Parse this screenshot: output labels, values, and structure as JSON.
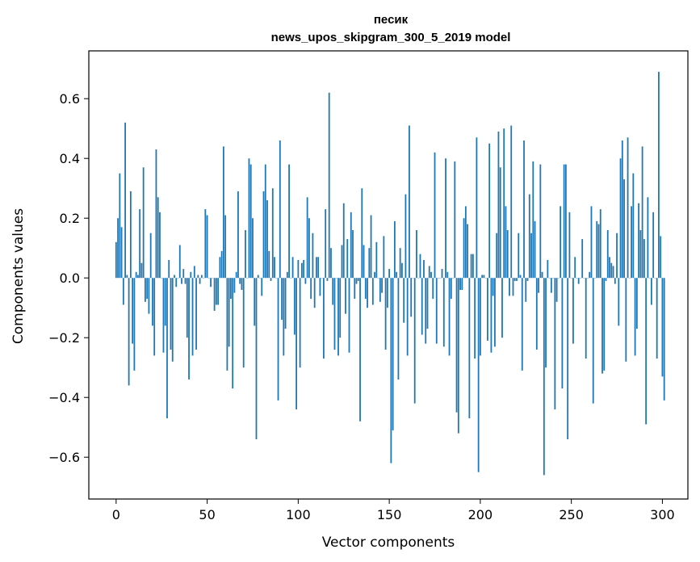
{
  "chart_data": {
    "type": "bar",
    "title": "песик",
    "subtitle": "news_upos_skipgram_300_5_2019 model",
    "xlabel": "Vector components",
    "ylabel": "Components values",
    "xlim": [
      -15,
      314
    ],
    "ylim": [
      -0.74,
      0.76
    ],
    "xticks": [
      0,
      50,
      100,
      150,
      200,
      250,
      300
    ],
    "yticks": [
      -0.6,
      -0.4,
      -0.2,
      0.0,
      0.2,
      0.4,
      0.6
    ],
    "ytick_labels": [
      "−0.6",
      "−0.4",
      "−0.2",
      "0.0",
      "0.2",
      "0.4",
      "0.6"
    ],
    "bar_color": "#1f77b4",
    "grid": false,
    "legend": "none",
    "x_start": 0,
    "values": [
      0.12,
      0.2,
      0.35,
      0.17,
      -0.09,
      0.52,
      0.01,
      -0.36,
      0.29,
      -0.22,
      -0.31,
      0.02,
      0.01,
      0.23,
      0.05,
      0.37,
      -0.08,
      -0.07,
      -0.12,
      0.15,
      -0.16,
      -0.26,
      0.43,
      0.27,
      0.22,
      0.0,
      -0.25,
      -0.16,
      -0.47,
      0.06,
      -0.24,
      -0.28,
      0.01,
      -0.03,
      0.0,
      0.11,
      -0.02,
      0.03,
      -0.02,
      -0.2,
      -0.34,
      0.02,
      -0.26,
      0.04,
      -0.24,
      0.01,
      -0.02,
      0.01,
      0.0,
      0.23,
      0.21,
      0.0,
      -0.03,
      0.0,
      -0.11,
      -0.09,
      -0.09,
      0.07,
      0.09,
      0.44,
      0.21,
      -0.31,
      -0.23,
      -0.07,
      -0.37,
      -0.05,
      0.02,
      0.29,
      -0.02,
      -0.04,
      -0.3,
      0.16,
      0.0,
      0.4,
      0.38,
      0.2,
      -0.16,
      -0.54,
      0.01,
      0.0,
      -0.06,
      0.29,
      0.38,
      0.26,
      0.09,
      -0.01,
      0.3,
      0.07,
      0.0,
      -0.41,
      0.46,
      -0.14,
      -0.26,
      -0.17,
      0.02,
      0.38,
      0.0,
      0.07,
      -0.19,
      -0.44,
      0.06,
      -0.3,
      0.05,
      0.06,
      -0.02,
      0.27,
      0.2,
      -0.07,
      0.15,
      -0.1,
      0.07,
      0.07,
      -0.06,
      0.0,
      -0.27,
      0.23,
      -0.01,
      0.62,
      0.1,
      -0.09,
      -0.24,
      0.0,
      -0.26,
      -0.2,
      0.11,
      0.25,
      -0.12,
      0.13,
      -0.25,
      0.22,
      0.16,
      -0.07,
      -0.02,
      -0.01,
      -0.48,
      0.3,
      0.11,
      -0.07,
      -0.1,
      0.1,
      0.21,
      -0.09,
      0.02,
      0.12,
      0.0,
      -0.08,
      -0.05,
      0.14,
      -0.24,
      -0.1,
      0.03,
      -0.62,
      -0.51,
      0.19,
      0.02,
      -0.34,
      0.1,
      0.05,
      -0.15,
      0.28,
      -0.26,
      0.51,
      -0.13,
      0.0,
      -0.42,
      0.16,
      0.0,
      0.08,
      -0.19,
      0.06,
      -0.22,
      -0.17,
      0.04,
      0.02,
      -0.07,
      0.42,
      -0.22,
      0.0,
      0.0,
      0.03,
      -0.23,
      0.4,
      0.02,
      -0.26,
      -0.07,
      0.0,
      0.39,
      -0.45,
      -0.52,
      -0.04,
      -0.04,
      0.2,
      0.24,
      0.18,
      -0.47,
      0.08,
      0.08,
      -0.27,
      0.47,
      -0.65,
      -0.26,
      0.01,
      0.01,
      0.0,
      -0.21,
      0.45,
      -0.25,
      -0.06,
      -0.23,
      0.15,
      0.49,
      0.37,
      -0.2,
      0.5,
      0.24,
      0.16,
      -0.06,
      0.51,
      -0.06,
      -0.01,
      -0.01,
      0.15,
      0.01,
      -0.31,
      0.46,
      -0.08,
      -0.01,
      0.28,
      0.15,
      0.39,
      0.19,
      -0.24,
      -0.05,
      0.38,
      0.02,
      -0.66,
      -0.3,
      0.06,
      0.0,
      -0.05,
      0.0,
      -0.44,
      -0.08,
      0.0,
      0.24,
      -0.37,
      0.38,
      0.38,
      -0.54,
      0.22,
      0.0,
      -0.22,
      0.07,
      0.0,
      -0.02,
      0.0,
      0.13,
      0.0,
      -0.27,
      0.0,
      0.02,
      0.24,
      -0.42,
      0.0,
      0.19,
      0.18,
      0.23,
      -0.32,
      -0.31,
      -0.01,
      0.16,
      0.07,
      0.05,
      0.04,
      -0.02,
      0.15,
      -0.16,
      0.4,
      0.46,
      0.33,
      -0.28,
      0.47,
      0.0,
      0.24,
      0.35,
      -0.26,
      -0.17,
      0.25,
      0.16,
      0.44,
      0.13,
      -0.49,
      0.27,
      0.0,
      -0.09,
      0.22,
      0.0,
      -0.27,
      0.69,
      0.14,
      -0.33,
      -0.41
    ]
  }
}
